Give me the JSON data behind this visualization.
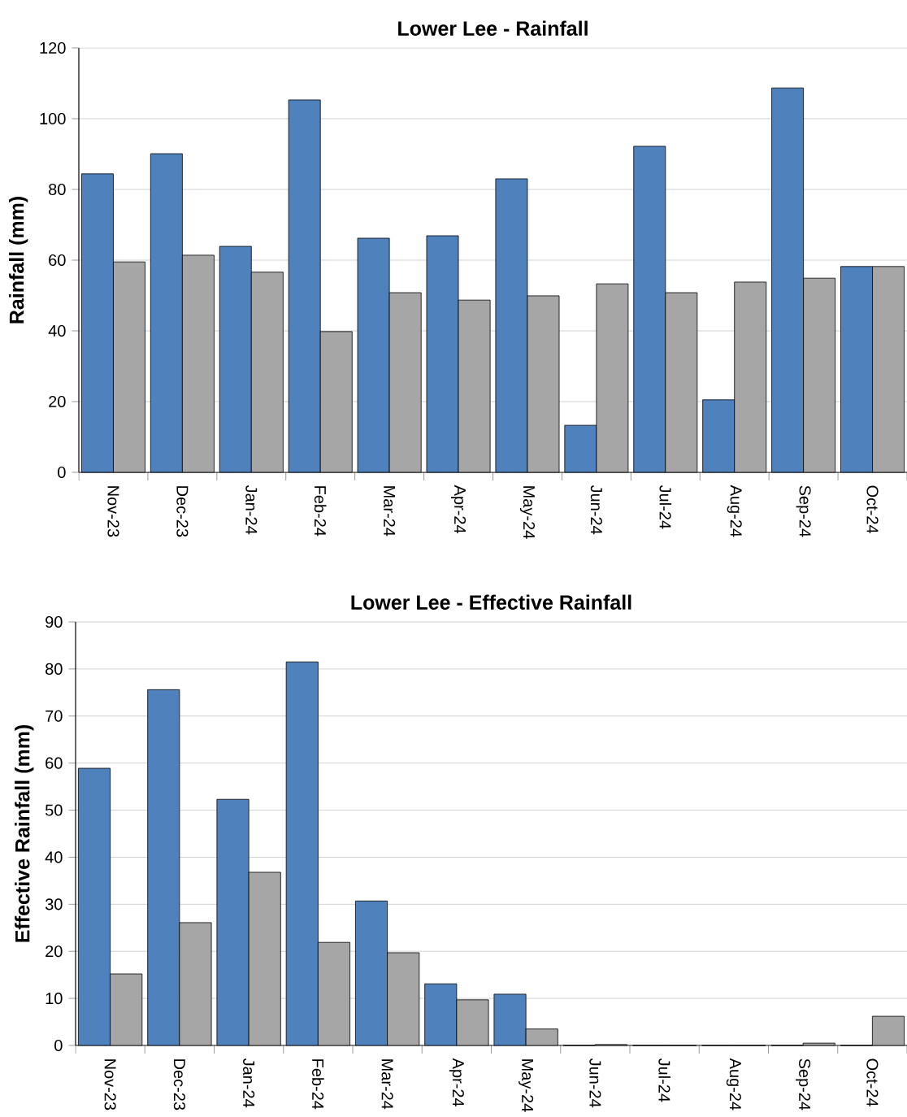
{
  "chart_data": [
    {
      "type": "bar",
      "title": "Lower Lee - Rainfall",
      "ylabel": "Rainfall (mm)",
      "categories": [
        "Nov-23",
        "Dec-23",
        "Jan-24",
        "Feb-24",
        "Mar-24",
        "Apr-24",
        "May-24",
        "Jun-24",
        "Jul-24",
        "Aug-24",
        "Sep-24",
        "Oct-24"
      ],
      "series": [
        {
          "color": "#4f81bd",
          "values": [
            84.4,
            90.1,
            63.9,
            105.3,
            66.2,
            66.9,
            83.0,
            13.3,
            92.2,
            20.5,
            108.7,
            58.2
          ]
        },
        {
          "color": "#a6a6a6",
          "values": [
            59.5,
            61.4,
            56.6,
            39.8,
            50.8,
            48.7,
            49.9,
            53.3,
            50.8,
            53.8,
            54.9,
            58.2
          ]
        }
      ],
      "ylim": [
        0,
        120
      ],
      "yticks": [
        0,
        20,
        40,
        60,
        80,
        100,
        120
      ],
      "grid": "y"
    },
    {
      "type": "bar",
      "title": "Lower Lee - Effective Rainfall",
      "ylabel": "Effective Rainfall (mm)",
      "categories": [
        "Nov-23",
        "Dec-23",
        "Jan-24",
        "Feb-24",
        "Mar-24",
        "Apr-24",
        "May-24",
        "Jun-24",
        "Jul-24",
        "Aug-24",
        "Sep-24",
        "Oct-24"
      ],
      "series": [
        {
          "color": "#4f81bd",
          "values": [
            58.9,
            75.6,
            52.3,
            81.5,
            30.7,
            13.1,
            10.9,
            0,
            0,
            0,
            0,
            0
          ]
        },
        {
          "color": "#a6a6a6",
          "values": [
            15.2,
            26.1,
            36.8,
            21.9,
            19.7,
            9.7,
            3.5,
            0.2,
            0,
            0,
            0.5,
            6.2
          ]
        }
      ],
      "ylim": [
        0,
        90
      ],
      "yticks": [
        0,
        10,
        20,
        30,
        40,
        50,
        60,
        70,
        80,
        90
      ],
      "grid": "y"
    }
  ]
}
